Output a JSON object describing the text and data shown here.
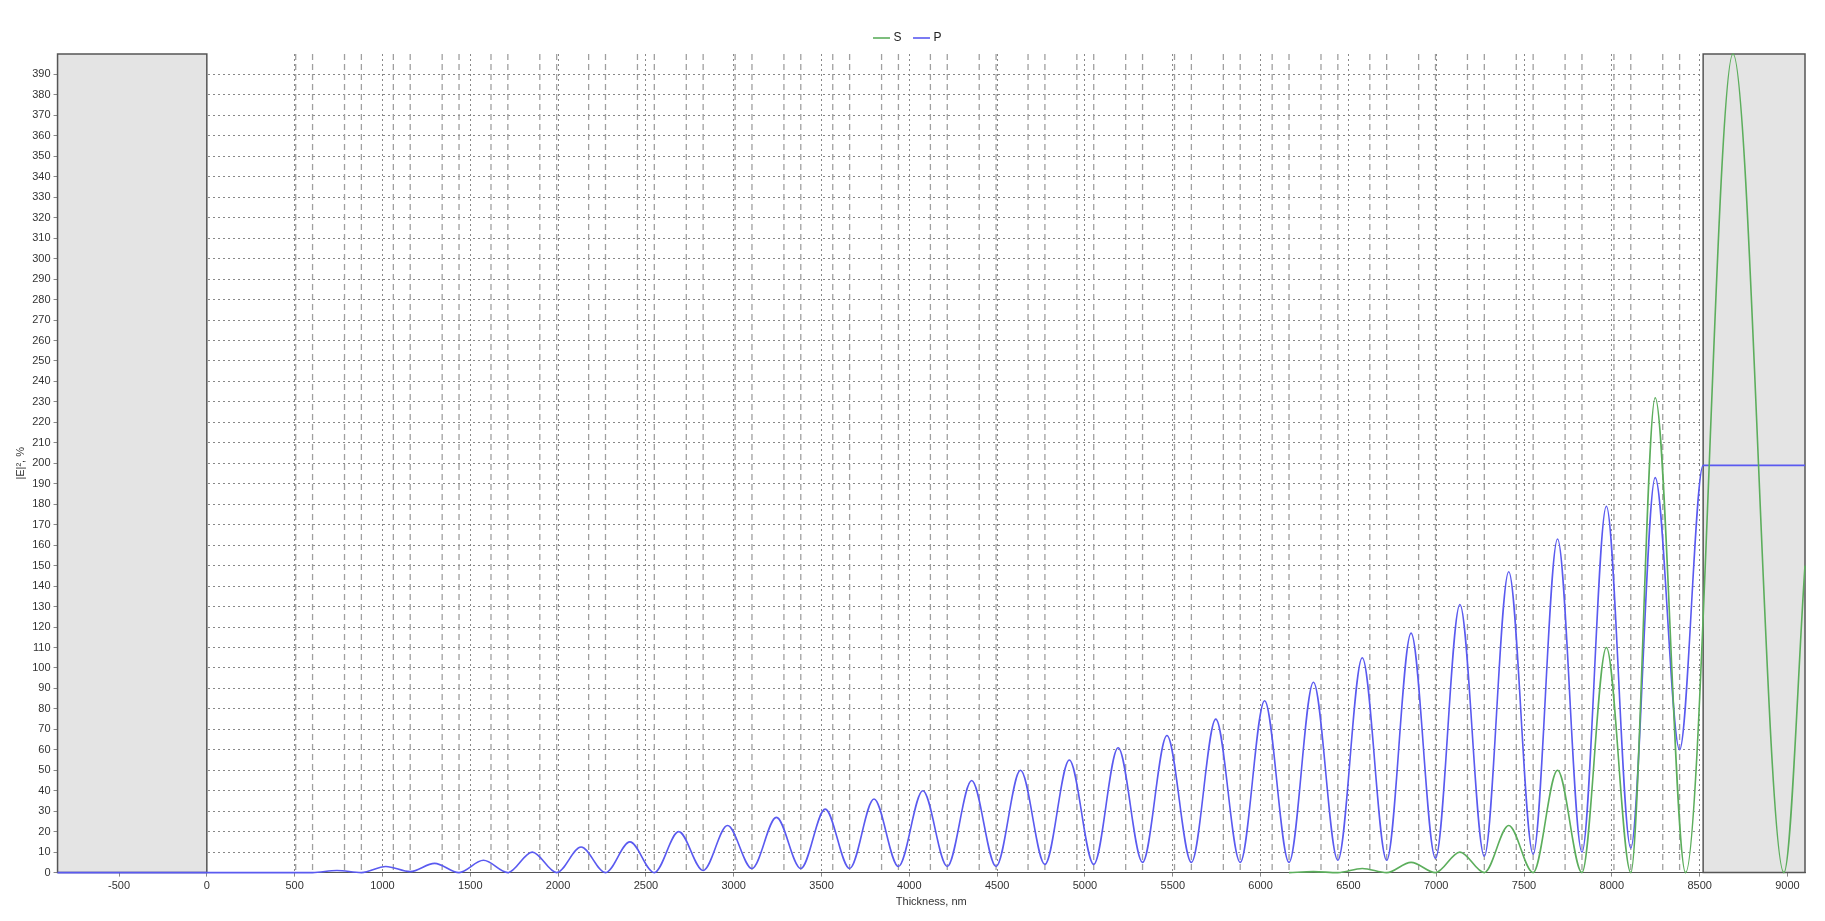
{
  "chart_data": {
    "type": "line",
    "xlabel": "Thickness, nm",
    "ylabel": "|E|², %",
    "xlim": [
      -850,
      9100
    ],
    "xticks": [
      -500,
      0,
      500,
      1000,
      1500,
      2000,
      2500,
      3000,
      3500,
      4000,
      4500,
      5000,
      5500,
      6000,
      6500,
      7000,
      7500,
      8000,
      8500,
      9000
    ],
    "ylim": [
      0,
      400
    ],
    "yticks": [
      0,
      10,
      20,
      30,
      40,
      50,
      60,
      70,
      80,
      90,
      100,
      110,
      120,
      130,
      140,
      150,
      160,
      170,
      180,
      190,
      200,
      210,
      220,
      230,
      240,
      250,
      260,
      270,
      280,
      290,
      300,
      310,
      320,
      330,
      340,
      350,
      360,
      370,
      380,
      390
    ],
    "grid": true,
    "legend": "top",
    "marker": "none",
    "line_style": "solid",
    "series": [
      {
        "name": "S",
        "color": "#5cae5c",
        "x": [
          6162,
          6301,
          6440,
          6579,
          6718,
          6857,
          6996,
          7135,
          7274,
          7413,
          7552,
          7691,
          7830,
          7969,
          8108,
          8247,
          8420,
          8690,
          8980,
          9100
        ],
        "values": [
          0,
          0.5,
          0,
          2,
          0,
          5,
          0,
          10,
          0,
          23,
          0,
          50,
          0,
          110,
          0,
          232,
          0,
          400,
          0,
          150
        ]
      },
      {
        "name": "P",
        "color": "#5a5af0",
        "x": [
          -850,
          602,
          741,
          880,
          1019,
          1158,
          1297,
          1436,
          1575,
          1714,
          1853,
          1992,
          2131,
          2270,
          2409,
          2548,
          2687,
          2826,
          2965,
          3104,
          3243,
          3382,
          3521,
          3660,
          3799,
          3938,
          4077,
          4216,
          4355,
          4494,
          4633,
          4772,
          4911,
          5050,
          5189,
          5328,
          5467,
          5606,
          5745,
          5884,
          6023,
          6162,
          6301,
          6440,
          6579,
          6718,
          6857,
          6996,
          7135,
          7274,
          7413,
          7552,
          7691,
          7830,
          7969,
          8108,
          8247,
          8386,
          8520,
          9100
        ],
        "values": [
          0,
          0,
          1,
          0,
          3,
          0.5,
          4.5,
          0,
          6,
          0,
          10,
          0,
          12.5,
          0,
          15,
          0,
          20,
          1,
          23,
          2,
          27,
          2,
          31,
          2,
          36,
          3,
          40,
          3,
          45,
          3,
          50,
          4,
          55,
          4,
          61,
          5,
          67,
          5,
          75,
          5,
          84,
          5,
          93,
          6,
          105,
          6,
          117,
          7,
          131,
          8,
          147,
          9,
          163,
          10,
          179,
          12,
          193,
          60,
          199,
          199
        ]
      }
    ],
    "bands": [
      {
        "axis": "x",
        "from": -850,
        "to": 0,
        "color": "#e4e4e4"
      },
      {
        "axis": "x",
        "from": 8520,
        "to": 9100,
        "color": "#e4e4e4"
      }
    ],
    "ref_lines": [
      {
        "axis": "x",
        "value": 506,
        "color": "#a0a0a0",
        "line_style": "dashed"
      },
      {
        "axis": "x",
        "value": 602,
        "color": "#a0a0a0",
        "line_style": "dashed"
      },
      {
        "axis": "x",
        "value": 784,
        "color": "#a0a0a0",
        "line_style": "dashed"
      },
      {
        "axis": "x",
        "value": 880,
        "color": "#a0a0a0",
        "line_style": "dashed"
      },
      {
        "axis": "x",
        "value": 1062,
        "color": "#a0a0a0",
        "line_style": "dashed"
      },
      {
        "axis": "x",
        "value": 1158,
        "color": "#a0a0a0",
        "line_style": "dashed"
      },
      {
        "axis": "x",
        "value": 1340,
        "color": "#a0a0a0",
        "line_style": "dashed"
      },
      {
        "axis": "x",
        "value": 1436,
        "color": "#a0a0a0",
        "line_style": "dashed"
      },
      {
        "axis": "x",
        "value": 1618,
        "color": "#a0a0a0",
        "line_style": "dashed"
      },
      {
        "axis": "x",
        "value": 1714,
        "color": "#a0a0a0",
        "line_style": "dashed"
      },
      {
        "axis": "x",
        "value": 1896,
        "color": "#a0a0a0",
        "line_style": "dashed"
      },
      {
        "axis": "x",
        "value": 1992,
        "color": "#a0a0a0",
        "line_style": "dashed"
      },
      {
        "axis": "x",
        "value": 2174,
        "color": "#a0a0a0",
        "line_style": "dashed"
      },
      {
        "axis": "x",
        "value": 2270,
        "color": "#a0a0a0",
        "line_style": "dashed"
      },
      {
        "axis": "x",
        "value": 2452,
        "color": "#a0a0a0",
        "line_style": "dashed"
      },
      {
        "axis": "x",
        "value": 2548,
        "color": "#a0a0a0",
        "line_style": "dashed"
      },
      {
        "axis": "x",
        "value": 2730,
        "color": "#a0a0a0",
        "line_style": "dashed"
      },
      {
        "axis": "x",
        "value": 2826,
        "color": "#a0a0a0",
        "line_style": "dashed"
      },
      {
        "axis": "x",
        "value": 3008,
        "color": "#a0a0a0",
        "line_style": "dashed"
      },
      {
        "axis": "x",
        "value": 3104,
        "color": "#a0a0a0",
        "line_style": "dashed"
      },
      {
        "axis": "x",
        "value": 3286,
        "color": "#a0a0a0",
        "line_style": "dashed"
      },
      {
        "axis": "x",
        "value": 3382,
        "color": "#a0a0a0",
        "line_style": "dashed"
      },
      {
        "axis": "x",
        "value": 3564,
        "color": "#a0a0a0",
        "line_style": "dashed"
      },
      {
        "axis": "x",
        "value": 3660,
        "color": "#a0a0a0",
        "line_style": "dashed"
      },
      {
        "axis": "x",
        "value": 3842,
        "color": "#a0a0a0",
        "line_style": "dashed"
      },
      {
        "axis": "x",
        "value": 3938,
        "color": "#a0a0a0",
        "line_style": "dashed"
      },
      {
        "axis": "x",
        "value": 4120,
        "color": "#a0a0a0",
        "line_style": "dashed"
      },
      {
        "axis": "x",
        "value": 4216,
        "color": "#a0a0a0",
        "line_style": "dashed"
      },
      {
        "axis": "x",
        "value": 4398,
        "color": "#a0a0a0",
        "line_style": "dashed"
      },
      {
        "axis": "x",
        "value": 4494,
        "color": "#a0a0a0",
        "line_style": "dashed"
      },
      {
        "axis": "x",
        "value": 4676,
        "color": "#a0a0a0",
        "line_style": "dashed"
      },
      {
        "axis": "x",
        "value": 4772,
        "color": "#a0a0a0",
        "line_style": "dashed"
      },
      {
        "axis": "x",
        "value": 4954,
        "color": "#a0a0a0",
        "line_style": "dashed"
      },
      {
        "axis": "x",
        "value": 5050,
        "color": "#a0a0a0",
        "line_style": "dashed"
      },
      {
        "axis": "x",
        "value": 5232,
        "color": "#a0a0a0",
        "line_style": "dashed"
      },
      {
        "axis": "x",
        "value": 5328,
        "color": "#a0a0a0",
        "line_style": "dashed"
      },
      {
        "axis": "x",
        "value": 5510,
        "color": "#a0a0a0",
        "line_style": "dashed"
      },
      {
        "axis": "x",
        "value": 5606,
        "color": "#a0a0a0",
        "line_style": "dashed"
      },
      {
        "axis": "x",
        "value": 5788,
        "color": "#a0a0a0",
        "line_style": "dashed"
      },
      {
        "axis": "x",
        "value": 5884,
        "color": "#a0a0a0",
        "line_style": "dashed"
      },
      {
        "axis": "x",
        "value": 6066,
        "color": "#a0a0a0",
        "line_style": "dashed"
      },
      {
        "axis": "x",
        "value": 6162,
        "color": "#a0a0a0",
        "line_style": "dashed"
      },
      {
        "axis": "x",
        "value": 6344,
        "color": "#a0a0a0",
        "line_style": "dashed"
      },
      {
        "axis": "x",
        "value": 6440,
        "color": "#a0a0a0",
        "line_style": "dashed"
      },
      {
        "axis": "x",
        "value": 6622,
        "color": "#a0a0a0",
        "line_style": "dashed"
      },
      {
        "axis": "x",
        "value": 6718,
        "color": "#a0a0a0",
        "line_style": "dashed"
      },
      {
        "axis": "x",
        "value": 6900,
        "color": "#a0a0a0",
        "line_style": "dashed"
      },
      {
        "axis": "x",
        "value": 6996,
        "color": "#a0a0a0",
        "line_style": "dashed"
      },
      {
        "axis": "x",
        "value": 7178,
        "color": "#a0a0a0",
        "line_style": "dashed"
      },
      {
        "axis": "x",
        "value": 7274,
        "color": "#a0a0a0",
        "line_style": "dashed"
      },
      {
        "axis": "x",
        "value": 7456,
        "color": "#a0a0a0",
        "line_style": "dashed"
      },
      {
        "axis": "x",
        "value": 7552,
        "color": "#a0a0a0",
        "line_style": "dashed"
      },
      {
        "axis": "x",
        "value": 7734,
        "color": "#a0a0a0",
        "line_style": "dashed"
      },
      {
        "axis": "x",
        "value": 7830,
        "color": "#a0a0a0",
        "line_style": "dashed"
      },
      {
        "axis": "x",
        "value": 8012,
        "color": "#a0a0a0",
        "line_style": "dashed"
      },
      {
        "axis": "x",
        "value": 8108,
        "color": "#a0a0a0",
        "line_style": "dashed"
      },
      {
        "axis": "x",
        "value": 8290,
        "color": "#a0a0a0",
        "line_style": "dashed"
      },
      {
        "axis": "x",
        "value": 8386,
        "color": "#a0a0a0",
        "line_style": "dashed"
      }
    ]
  }
}
